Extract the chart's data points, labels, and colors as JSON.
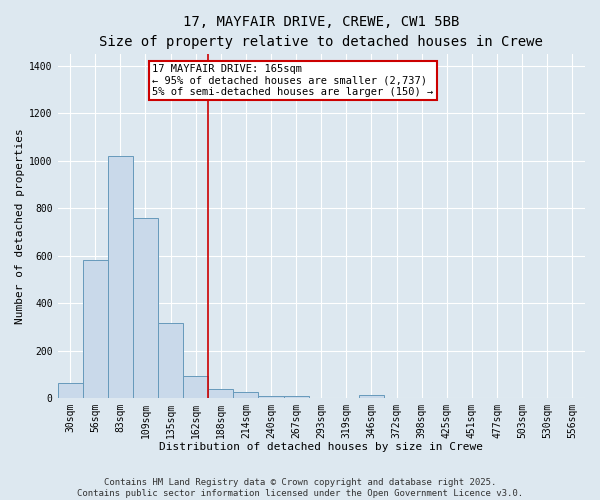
{
  "title1": "17, MAYFAIR DRIVE, CREWE, CW1 5BB",
  "title2": "Size of property relative to detached houses in Crewe",
  "xlabel": "Distribution of detached houses by size in Crewe",
  "ylabel": "Number of detached properties",
  "bin_labels": [
    "30sqm",
    "56sqm",
    "83sqm",
    "109sqm",
    "135sqm",
    "162sqm",
    "188sqm",
    "214sqm",
    "240sqm",
    "267sqm",
    "293sqm",
    "319sqm",
    "346sqm",
    "372sqm",
    "398sqm",
    "425sqm",
    "451sqm",
    "477sqm",
    "503sqm",
    "530sqm",
    "556sqm"
  ],
  "bar_values": [
    65,
    580,
    1020,
    760,
    315,
    95,
    40,
    25,
    10,
    10,
    0,
    0,
    15,
    0,
    0,
    0,
    0,
    0,
    0,
    0,
    0
  ],
  "bar_color": "#c9d9ea",
  "bar_edge_color": "#6699bb",
  "vline_x": 5.5,
  "vline_color": "#cc0000",
  "annotation_line1": "17 MAYFAIR DRIVE: 165sqm",
  "annotation_line2": "← 95% of detached houses are smaller (2,737)",
  "annotation_line3": "5% of semi-detached houses are larger (150) →",
  "annotation_box_color": "#ffffff",
  "annotation_box_edge": "#cc0000",
  "ylim": [
    0,
    1450
  ],
  "yticks": [
    0,
    200,
    400,
    600,
    800,
    1000,
    1200,
    1400
  ],
  "footer1": "Contains HM Land Registry data © Crown copyright and database right 2025.",
  "footer2": "Contains public sector information licensed under the Open Government Licence v3.0.",
  "bg_color": "#dde8f0",
  "plot_bg_color": "#dde8f0",
  "grid_color": "#ffffff",
  "title1_fontsize": 10,
  "title2_fontsize": 9,
  "xlabel_fontsize": 8,
  "ylabel_fontsize": 8,
  "tick_fontsize": 7,
  "annotation_fontsize": 7.5,
  "footer_fontsize": 6.5
}
